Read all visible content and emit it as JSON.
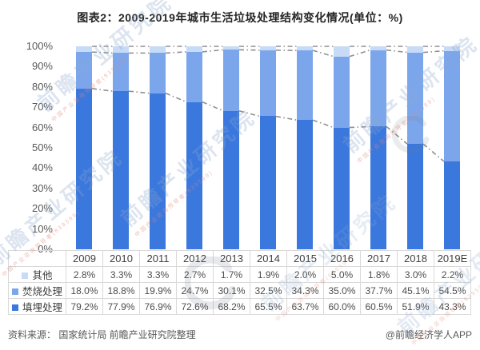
{
  "title": "图表2：2009-2019年城市生活垃圾处理结构变化情况(单位：%)",
  "chart_data": {
    "type": "bar",
    "subtype": "stacked-100-percent-column-with-data-table",
    "categories": [
      "2009",
      "2010",
      "2011",
      "2012",
      "2013",
      "2014",
      "2015",
      "2016",
      "2017",
      "2018",
      "2019E"
    ],
    "series": [
      {
        "name": "其他",
        "color": "#c7daf6",
        "values": [
          2.8,
          3.3,
          3.3,
          2.7,
          1.7,
          1.9,
          2.0,
          5.0,
          1.8,
          3.0,
          2.2
        ]
      },
      {
        "name": "焚烧处理",
        "color": "#7ca6ec",
        "values": [
          18.0,
          18.8,
          19.9,
          24.7,
          30.1,
          32.5,
          34.3,
          35.0,
          37.7,
          45.1,
          54.5
        ]
      },
      {
        "name": "填埋处理",
        "color": "#3b78dd",
        "values": [
          79.2,
          77.9,
          76.9,
          72.6,
          68.2,
          65.5,
          63.7,
          60.0,
          60.5,
          51.9,
          43.3
        ]
      }
    ],
    "y_ticks": [
      "0%",
      "10%",
      "20%",
      "30%",
      "40%",
      "50%",
      "60%",
      "70%",
      "80%",
      "90%",
      "100%"
    ],
    "ylim": [
      0,
      100
    ],
    "grid": false,
    "legend_position": "data-table-left-column",
    "connector_line_color": "#8f8f8f",
    "value_suffix": "%"
  },
  "footer": {
    "source": "资料来源： 国家统计局 前瞻产业研究院整理",
    "brand": "@前瞻经济学人APP"
  },
  "watermark": {
    "text": "前瞻产业研究院",
    "subtext": "中国产业咨询领导者(839599)"
  }
}
